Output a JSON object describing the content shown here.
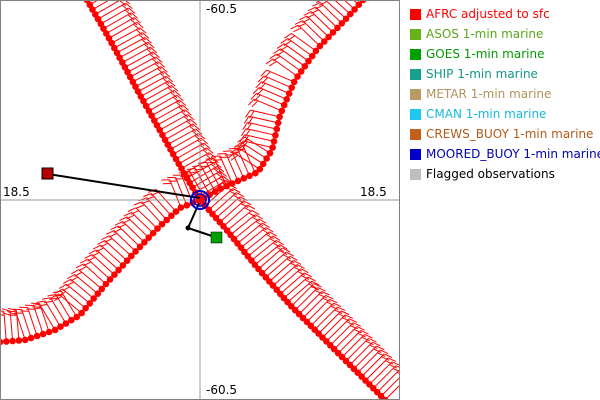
{
  "axes": {
    "top_label": "-60.5",
    "bottom_label": "-60.5",
    "left_label": "18.5",
    "right_label": "18.5"
  },
  "legend": [
    {
      "label": "AFRC adjusted to sfc",
      "color": "#ff0000",
      "text_color": "#ff0000"
    },
    {
      "label": "ASOS 1-min marine",
      "color": "#66b21a",
      "text_color": "#5aa61a"
    },
    {
      "label": "GOES 1-min marine",
      "color": "#00a000",
      "text_color": "#009900"
    },
    {
      "label": "SHIP 1-min marine",
      "color": "#17a08c",
      "text_color": "#139686"
    },
    {
      "label": "METAR 1-min marine",
      "color": "#b89a64",
      "text_color": "#b0925e"
    },
    {
      "label": "CMAN 1-min marine",
      "color": "#1ec8ef",
      "text_color": "#18b8e0"
    },
    {
      "label": "CREWS_BUOY 1-min marine",
      "color": "#c0601a",
      "text_color": "#b35a1a"
    },
    {
      "label": "MOORED_BUOY 1-min marine",
      "color": "#0000c8",
      "text_color": "#0000b4"
    },
    {
      "label": "Flagged observations",
      "color": "#bebebe",
      "text_color": "#000000"
    }
  ],
  "colors": {
    "track": "#ff0000",
    "barb": "#ff0000",
    "crosshair": "#999999",
    "border": "#808080",
    "connector": "#000000",
    "buoy_marker": "#0000c8",
    "goes_marker": "#00a000",
    "outlier_marker": "#b40000"
  }
}
